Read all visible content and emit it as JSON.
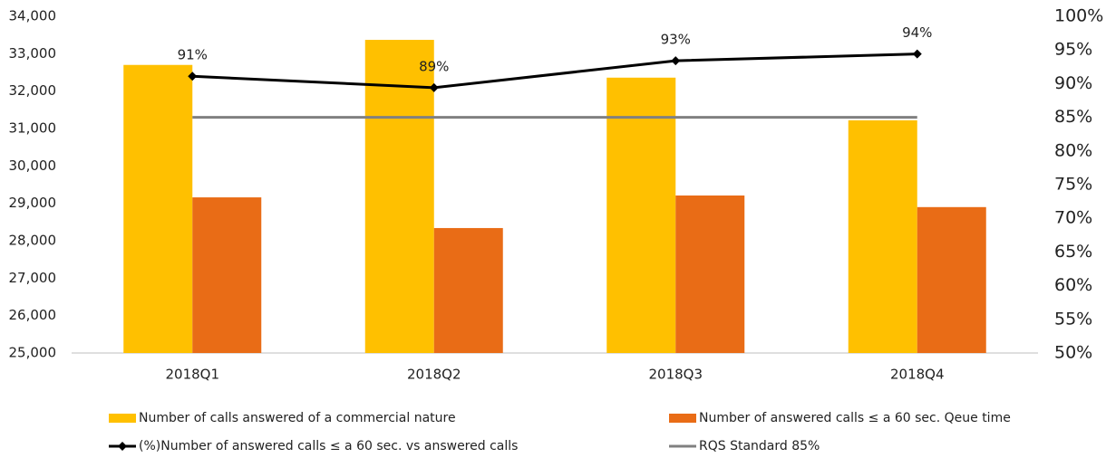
{
  "chart_data": {
    "type": "bar",
    "categories": [
      "2018Q1",
      "2018Q2",
      "2018Q3",
      "2018Q4"
    ],
    "ylim": [
      25000,
      34000
    ],
    "yticks": [
      {
        "value": 25000,
        "label": "25,000"
      },
      {
        "value": 26000,
        "label": "26,000"
      },
      {
        "value": 27000,
        "label": "27,000"
      },
      {
        "value": 28000,
        "label": "28,000"
      },
      {
        "value": 29000,
        "label": "29,000"
      },
      {
        "value": 30000,
        "label": "30,000"
      },
      {
        "value": 31000,
        "label": "31,000"
      },
      {
        "value": 32000,
        "label": "32,000"
      },
      {
        "value": 33000,
        "label": "33,000"
      },
      {
        "value": 34000,
        "label": "34,000"
      }
    ],
    "y2lim": [
      50,
      100
    ],
    "y2ticks": [
      {
        "value": 50,
        "label": "50%"
      },
      {
        "value": 55,
        "label": "55%"
      },
      {
        "value": 60,
        "label": "60%"
      },
      {
        "value": 65,
        "label": "65%"
      },
      {
        "value": 70,
        "label": "70%"
      },
      {
        "value": 75,
        "label": "75%"
      },
      {
        "value": 80,
        "label": "80%"
      },
      {
        "value": 85,
        "label": "85%"
      },
      {
        "value": 90,
        "label": "90%"
      },
      {
        "value": 95,
        "label": "95%"
      },
      {
        "value": 100,
        "label": "100%"
      }
    ],
    "series": [
      {
        "name": "Number of calls answered of a commercial nature",
        "type": "bar",
        "color": "#ffc000",
        "values": [
          32700,
          33370,
          32360,
          31220
        ]
      },
      {
        "name": "Number of answered calls  ≤ a 60 sec. Qeue time",
        "type": "bar",
        "color": "#e96c16",
        "values": [
          29160,
          28340,
          29210,
          28900
        ]
      },
      {
        "name": "(%)Number of answered calls  ≤ a 60 sec. vs answered calls",
        "type": "line",
        "axis": "y2",
        "color": "#000000",
        "values": [
          91.1,
          89.4,
          93.4,
          94.4
        ],
        "value_labels": [
          "91%",
          "89%",
          "93%",
          "94%"
        ]
      },
      {
        "name": "RQS Standard 85%",
        "type": "line",
        "axis": "y2",
        "color": "#808080",
        "values": [
          85,
          85,
          85,
          85
        ]
      }
    ]
  }
}
